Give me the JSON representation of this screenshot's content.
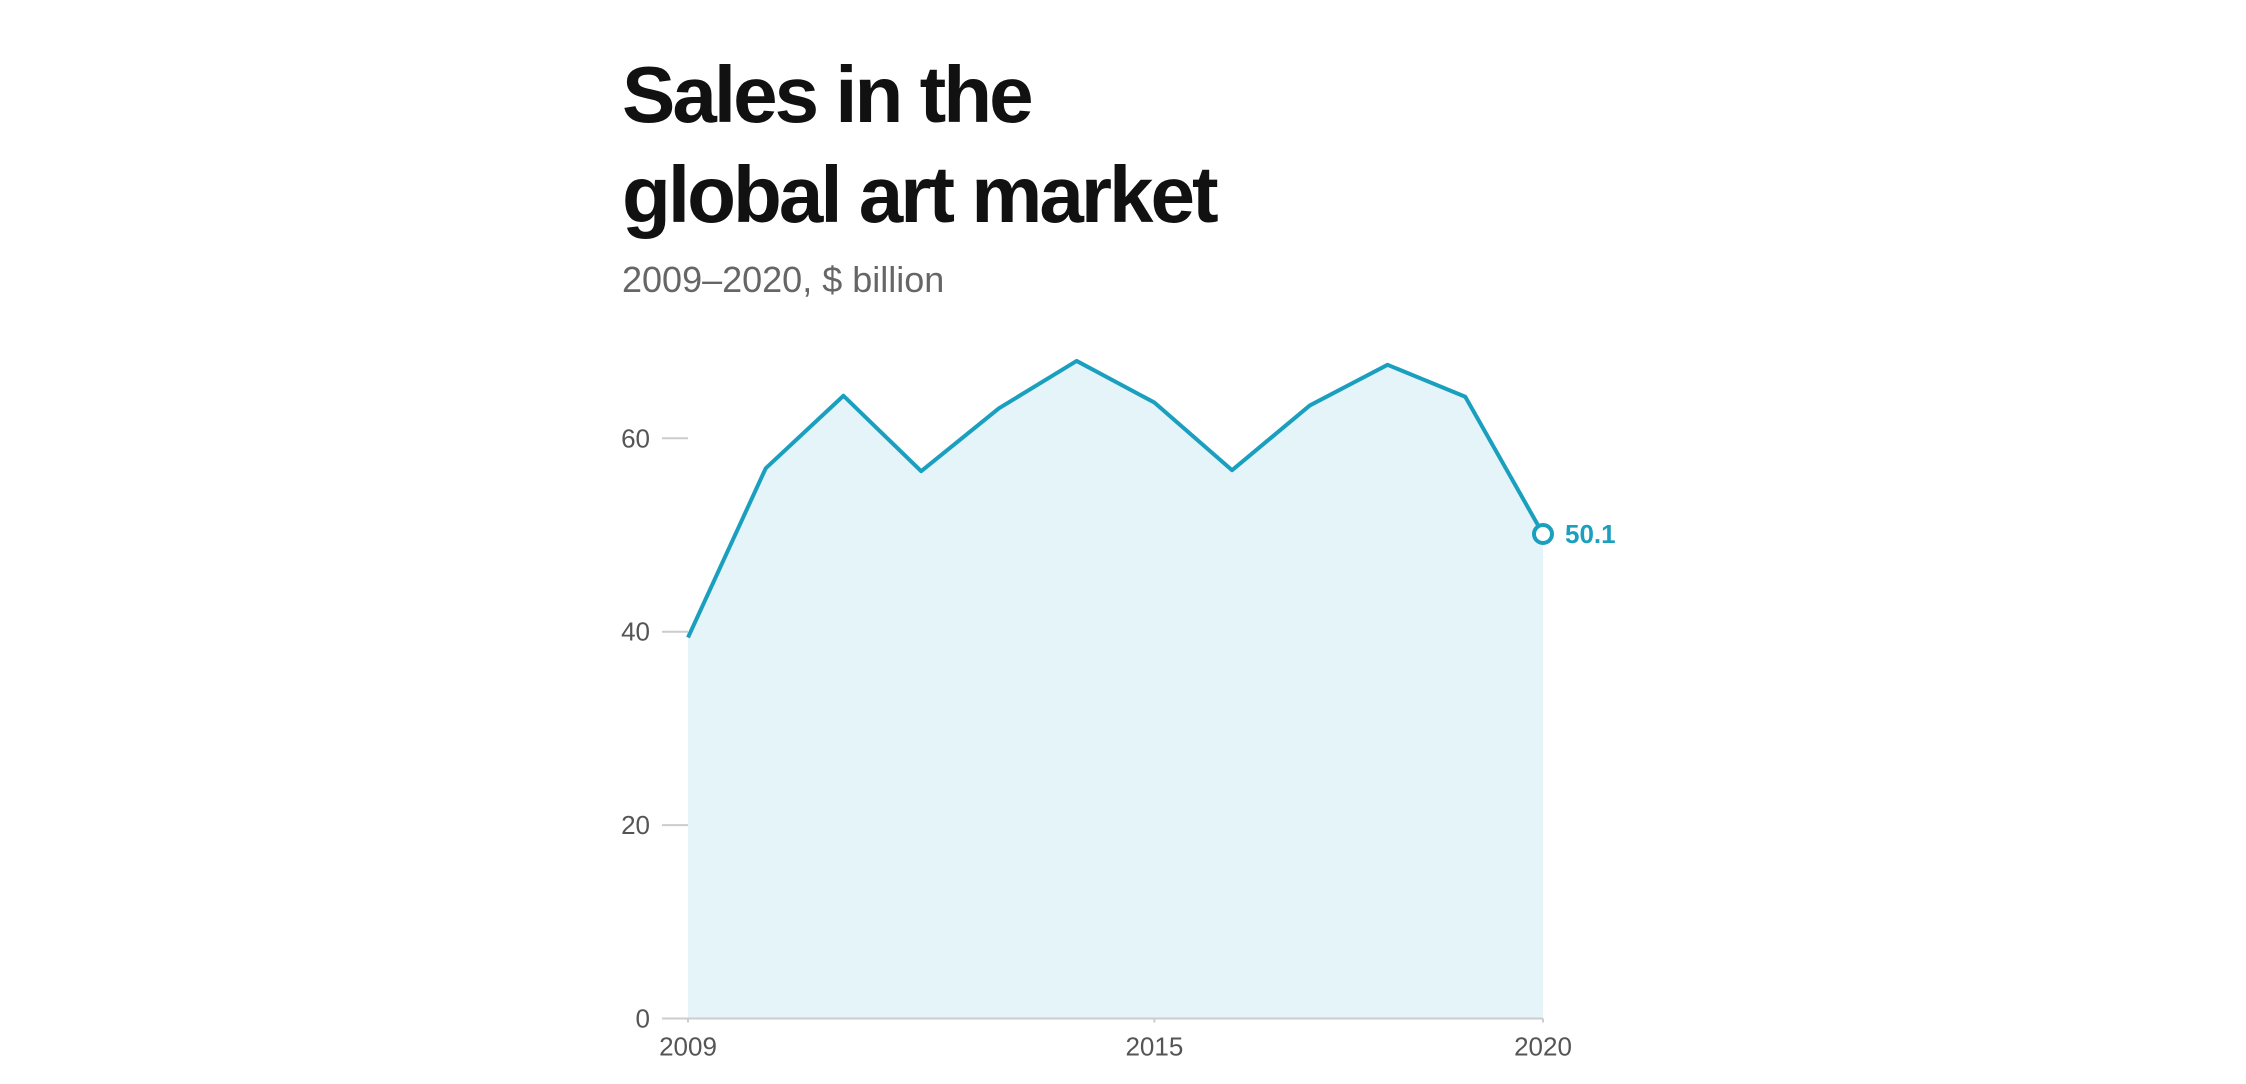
{
  "chart_data": {
    "type": "area",
    "title": [
      "Sales in the",
      "global art market"
    ],
    "subtitle": "2009–2020, $ billion",
    "x": [
      2009,
      2010,
      2011,
      2012,
      2013,
      2014,
      2015,
      2016,
      2017,
      2018,
      2019,
      2020
    ],
    "values": [
      39.4,
      56.9,
      64.4,
      56.6,
      63.1,
      68.0,
      63.7,
      56.7,
      63.4,
      67.6,
      64.3,
      50.1
    ],
    "color": "#1a9fbf",
    "fill_color": "#e4f4f9",
    "xlim": [
      2009,
      2020
    ],
    "xticks": [
      2009,
      2015,
      2020
    ],
    "ylim": [
      0,
      70
    ],
    "yticks": [
      0,
      20,
      40,
      60
    ],
    "label_last": true
  }
}
